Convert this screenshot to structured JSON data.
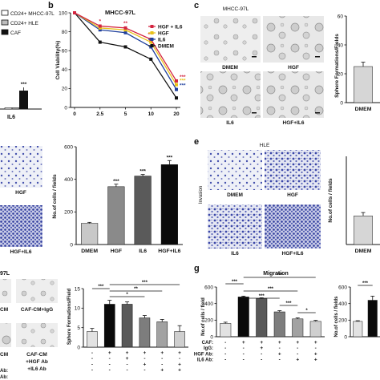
{
  "panels": {
    "a": {
      "letter": "",
      "legend": [
        "CD24+ MHCC-97L",
        "CD24+ HLE",
        "CAF"
      ],
      "legend_colors": [
        "#ffffff",
        "#bdbdbd",
        "#111111"
      ],
      "stars": "***",
      "xlabel": "IL6"
    },
    "b": {
      "letter": "b",
      "title": "MHCC-97L",
      "ylabel": "Cell Viability(%)"
    },
    "c": {
      "letter": "c",
      "title": "MHCC-97L",
      "images": [
        "DMEM",
        "HGF",
        "IL6",
        "HGF+IL6"
      ],
      "bar_ylabel": "Sphere Formations/Fields",
      "bar_xlabel": "DMEM",
      "yticks": [
        "60",
        "40",
        "20",
        "0"
      ]
    },
    "d": {
      "letter": "",
      "images": [
        "HGF",
        "HGF+IL6"
      ]
    },
    "e": {
      "letter": "e",
      "title": "HLE",
      "side_label": "Invasion",
      "images": [
        "DMEM",
        "HGF",
        "IL6",
        "HGF+IL6"
      ],
      "bar_ylabel": "No.of cells / fields",
      "bar_xlabel": "DMEM"
    },
    "f": {
      "title_fragment": "97L",
      "images": [
        "CM",
        "CAF-CM+IgG",
        "CM",
        "CAF-CM",
        "+HGF Ab",
        "+IL6 Ab"
      ],
      "ylabel": "Sphere Formations/Field"
    },
    "g": {
      "letter": "g",
      "title": "Migration",
      "ylabel": "No.of cells / field",
      "ylabel_right": "No.of cells / fields",
      "row_labels": [
        "CAF:",
        "IgG:",
        "HGF Ab:",
        "IL6 Ab:"
      ],
      "left_row_labels": [
        "Ab:",
        "Ab:"
      ]
    }
  },
  "chart_data": [
    {
      "panel": "a",
      "type": "bar",
      "categories": [
        "IL6"
      ],
      "series": [
        {
          "name": "CD24+ MHCC-97L",
          "values": [
            0.3
          ]
        },
        {
          "name": "CD24+ HLE",
          "values": [
            0.3
          ]
        },
        {
          "name": "CAF",
          "values": [
            21
          ]
        }
      ],
      "ylim": [
        0,
        60
      ]
    },
    {
      "panel": "b",
      "type": "line",
      "title": "MHCC-97L",
      "ylabel": "Cell Viability(%)",
      "x": [
        0,
        2.5,
        5,
        10,
        20
      ],
      "xticks": [
        "0",
        "2.5",
        "5",
        "10",
        "20"
      ],
      "ylim": [
        0,
        100
      ],
      "yticks": [
        "0",
        "20",
        "40",
        "60",
        "80",
        "100"
      ],
      "legend": "top-right",
      "series": [
        {
          "name": "HGF + IL6",
          "color": "#d4243f",
          "values": [
            100,
            86,
            84,
            72,
            28
          ],
          "stars": [
            "",
            "*",
            "**",
            "***",
            "***"
          ]
        },
        {
          "name": "HGF",
          "color": "#e8c21a",
          "values": [
            100,
            84,
            82,
            69,
            24
          ],
          "stars": [
            "",
            "",
            "",
            "",
            "***"
          ]
        },
        {
          "name": "IL6",
          "color": "#1e3f9c",
          "values": [
            100,
            82,
            79,
            64,
            19
          ],
          "stars": [
            "",
            "",
            "",
            "",
            "***"
          ]
        },
        {
          "name": "DMEM",
          "color": "#111111",
          "values": [
            100,
            69,
            64,
            51,
            10
          ],
          "stars": [
            "",
            "",
            "",
            "",
            ""
          ]
        }
      ]
    },
    {
      "panel": "c",
      "type": "bar",
      "categories": [
        "DMEM"
      ],
      "values": [
        25
      ],
      "errors": [
        3
      ],
      "ylim": [
        0,
        60
      ]
    },
    {
      "panel": "d",
      "type": "bar",
      "ylabel": "No.of cells / fields",
      "categories": [
        "DMEM",
        "HGF",
        "IL6",
        "HGF+IL6"
      ],
      "values": [
        130,
        355,
        420,
        490
      ],
      "errors": [
        6,
        15,
        10,
        25
      ],
      "stars": [
        "",
        "***",
        "***",
        "***"
      ],
      "colors": [
        "#c8c8c8",
        "#8a8a8a",
        "#5a5a5a",
        "#0a0a0a"
      ],
      "ylim": [
        0,
        600
      ],
      "yticks": [
        "0",
        "200",
        "400",
        "600"
      ]
    },
    {
      "panel": "e",
      "type": "bar",
      "categories": [
        "DMEM"
      ],
      "values": [
        130
      ],
      "errors": [
        15
      ],
      "ylim": [
        0,
        400
      ]
    },
    {
      "panel": "f",
      "type": "bar",
      "ylabel": "Sphere Formations/Field",
      "categories": [
        "1",
        "2",
        "3",
        "4",
        "5",
        "6"
      ],
      "values": [
        4,
        11,
        11,
        7.5,
        6.5,
        4
      ],
      "errors": [
        0.8,
        1,
        0.6,
        0.6,
        0.6,
        1.5
      ],
      "colors": [
        "#e2e2e2",
        "#0a0a0a",
        "#595959",
        "#7d7d7d",
        "#a2a2a2",
        "#cfcfcf"
      ],
      "ylim": [
        0,
        15
      ],
      "yticks": [
        "0",
        "5",
        "10",
        "15"
      ],
      "conditions": [
        [
          "-",
          "+",
          "+",
          "+",
          "+",
          "+"
        ],
        [
          "-",
          "-",
          "+",
          "-",
          "-",
          "-"
        ],
        [
          "-",
          "-",
          "-",
          "+",
          "-",
          "+"
        ],
        [
          "-",
          "-",
          "-",
          "-",
          "+",
          "+"
        ]
      ],
      "significance": [
        {
          "from": 0,
          "to": 1,
          "label": "***"
        },
        {
          "from": 1,
          "to": 5,
          "label": "***"
        },
        {
          "from": 1,
          "to": 4,
          "label": "**"
        },
        {
          "from": 1,
          "to": 3,
          "label": "*"
        }
      ]
    },
    {
      "panel": "g",
      "type": "bar",
      "title": "Migration",
      "ylabel": "No.of cells / field",
      "categories": [
        "1",
        "2",
        "3",
        "4",
        "5",
        "6"
      ],
      "values": [
        160,
        480,
        460,
        300,
        215,
        185
      ],
      "errors": [
        15,
        10,
        10,
        15,
        12,
        12
      ],
      "colors": [
        "#e2e2e2",
        "#0a0a0a",
        "#595959",
        "#7d7d7d",
        "#a2a2a2",
        "#cfcfcf"
      ],
      "ylim": [
        0,
        600
      ],
      "yticks": [
        "0",
        "200",
        "400",
        "600"
      ],
      "conditions": [
        [
          "-",
          "+",
          "+",
          "+",
          "+",
          "+"
        ],
        [
          "-",
          "-",
          "+",
          "-",
          "-",
          "-"
        ],
        [
          "-",
          "-",
          "-",
          "+",
          "-",
          "+"
        ],
        [
          "-",
          "-",
          "-",
          "-",
          "+",
          "+"
        ]
      ],
      "significance": [
        {
          "from": 0,
          "to": 1,
          "label": "***"
        },
        {
          "from": 1,
          "to": 5,
          "label": "***"
        },
        {
          "from": 1,
          "to": 4,
          "label": "***"
        },
        {
          "from": 1,
          "to": 3,
          "label": "***"
        },
        {
          "from": 3,
          "to": 4,
          "label": "***"
        },
        {
          "from": 4,
          "to": 5,
          "label": "*"
        }
      ]
    },
    {
      "panel": "g-right",
      "type": "bar",
      "ylabel": "No.of cells / fields",
      "categories": [
        "1",
        "2"
      ],
      "values": [
        185,
        440
      ],
      "errors": [
        8,
        50
      ],
      "colors": [
        "#e2e2e2",
        "#0a0a0a"
      ],
      "ylim": [
        0,
        600
      ],
      "yticks": [
        "0",
        "200",
        "400",
        "600"
      ],
      "significance": [
        {
          "from": 0,
          "to": 1,
          "label": "***"
        }
      ]
    }
  ]
}
